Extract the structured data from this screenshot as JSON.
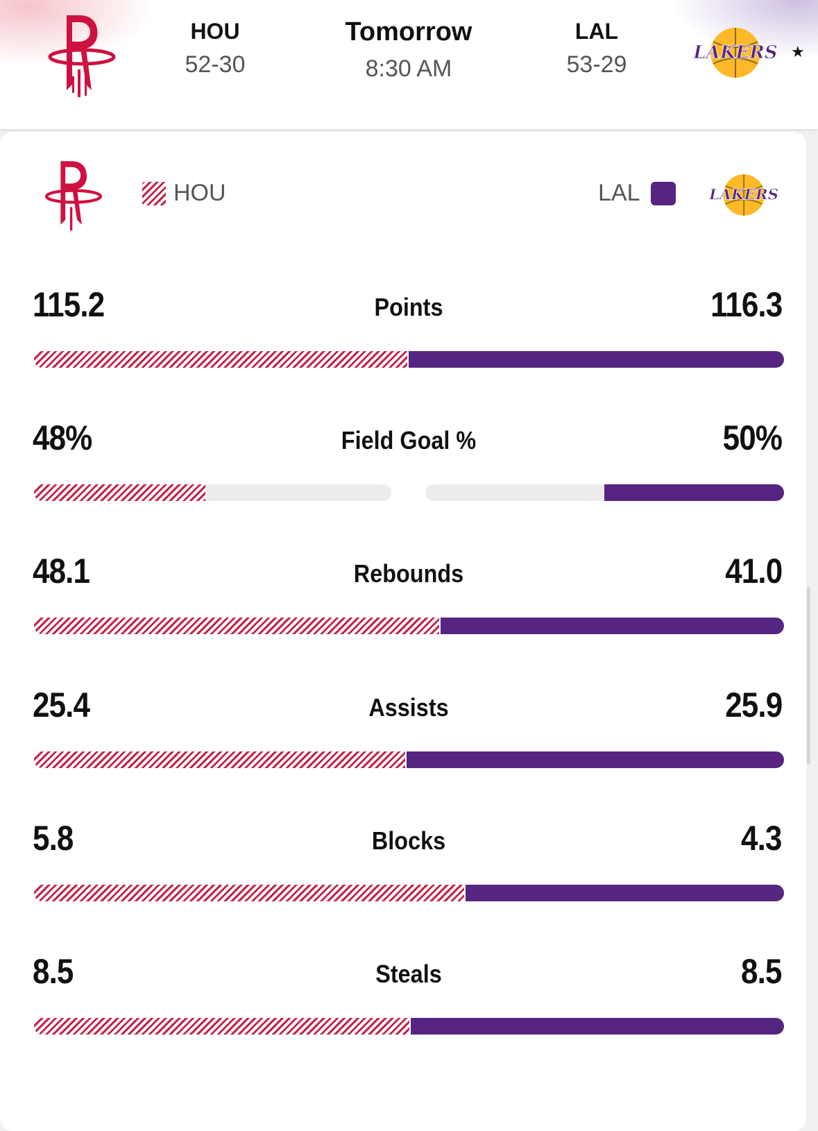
{
  "header": {
    "home": {
      "abbr": "HOU",
      "record": "52-30",
      "logo": "houston-rockets-logo"
    },
    "away": {
      "abbr": "LAL",
      "record": "53-29",
      "logo": "los-angeles-lakers-logo",
      "favorite_marker": "★"
    },
    "game": {
      "day": "Tomorrow",
      "time": "8:30 AM"
    }
  },
  "legend": {
    "home_label": "HOU",
    "away_label": "LAL",
    "home_color": "#c0254a",
    "away_color": "#562581"
  },
  "stats": [
    {
      "label": "Points",
      "home": "115.2",
      "away": "116.3",
      "home_share": 0.498,
      "away_share": 0.502,
      "layout": "split"
    },
    {
      "label": "Field Goal %",
      "home": "48%",
      "away": "50%",
      "home_pct": 48,
      "away_pct": 50,
      "layout": "percent"
    },
    {
      "label": "Rebounds",
      "home": "48.1",
      "away": "41.0",
      "home_share": 0.54,
      "away_share": 0.46,
      "layout": "split"
    },
    {
      "label": "Assists",
      "home": "25.4",
      "away": "25.9",
      "home_share": 0.495,
      "away_share": 0.505,
      "layout": "split"
    },
    {
      "label": "Blocks",
      "home": "5.8",
      "away": "4.3",
      "home_share": 0.574,
      "away_share": 0.426,
      "layout": "split"
    },
    {
      "label": "Steals",
      "home": "8.5",
      "away": "8.5",
      "home_share": 0.5,
      "away_share": 0.5,
      "layout": "split"
    }
  ]
}
